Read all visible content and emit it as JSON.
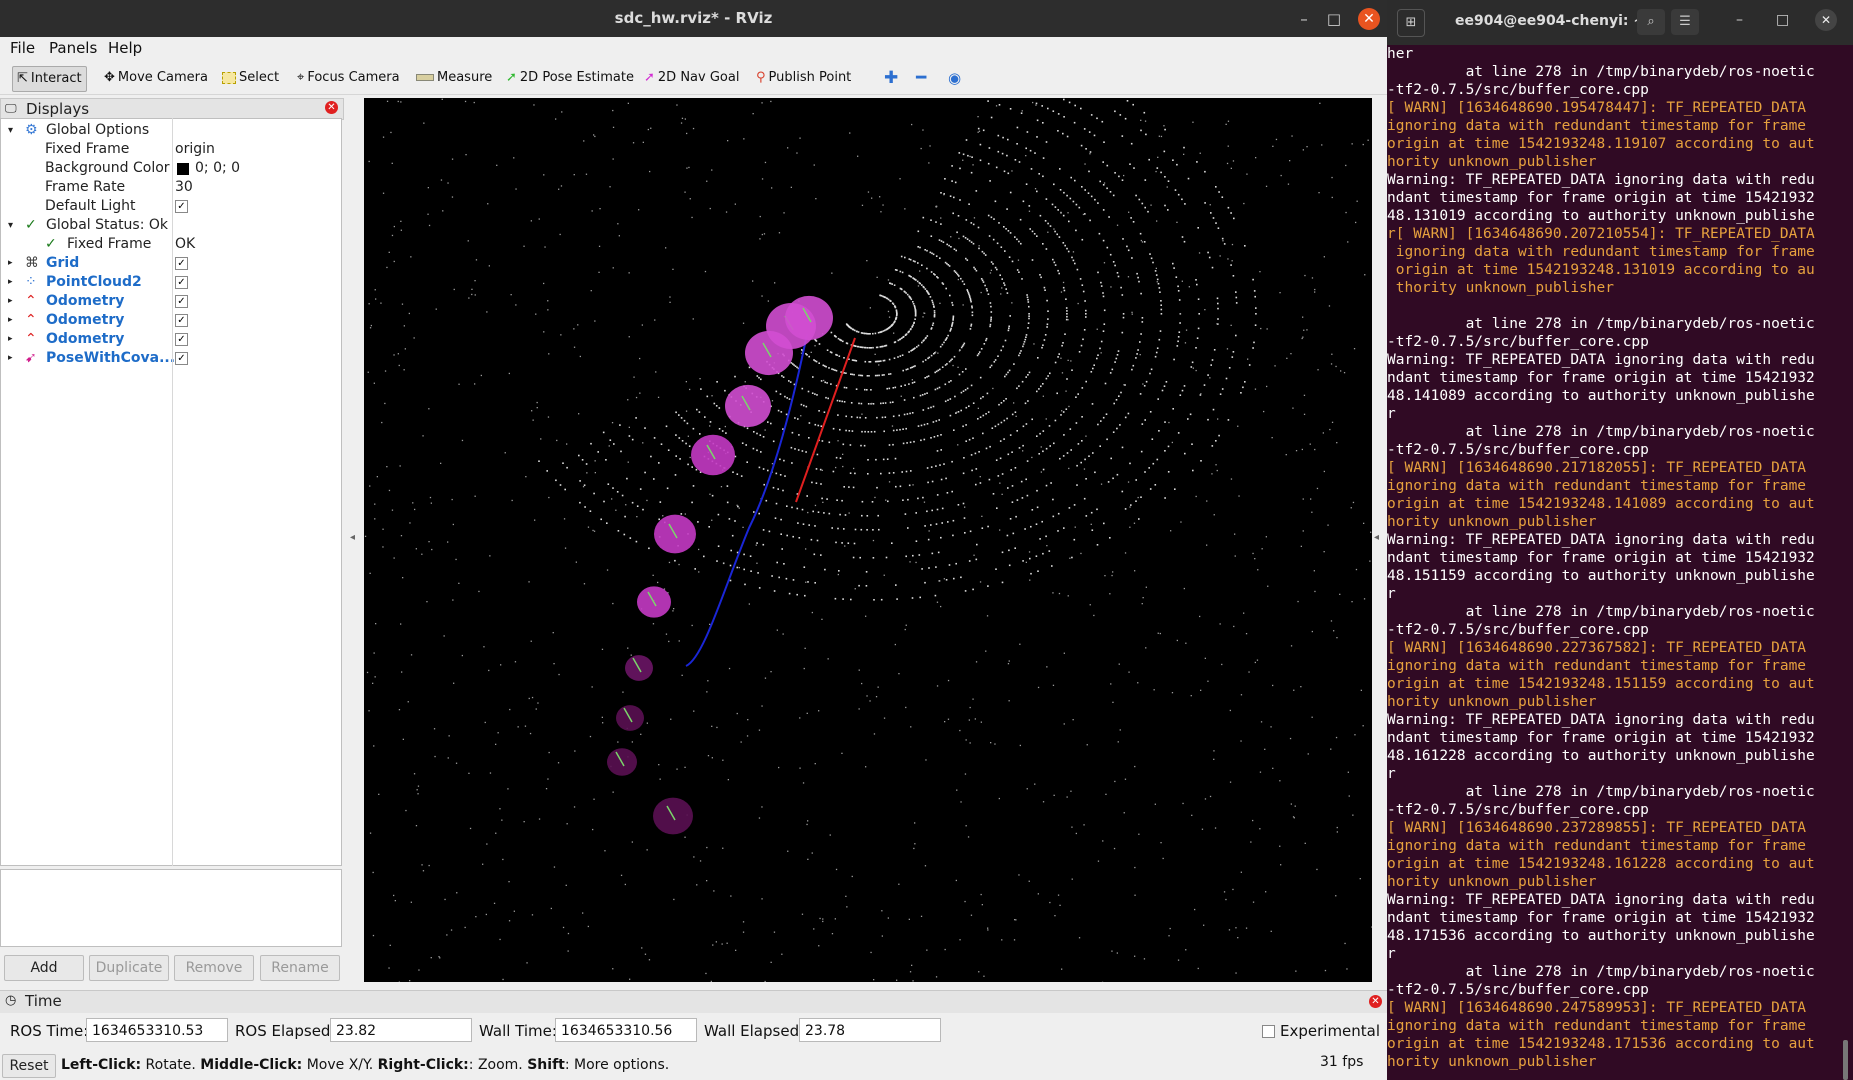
{
  "rviz": {
    "title": "sdc_hw.rviz* - RViz",
    "menus": [
      "File",
      "Panels",
      "Help"
    ],
    "toolbar": [
      {
        "label": "Interact",
        "icon": "cursor-icon"
      },
      {
        "label": "Move Camera",
        "icon": "move-camera-icon"
      },
      {
        "label": "Select",
        "icon": "select-box-icon"
      },
      {
        "label": "Focus Camera",
        "icon": "focus-camera-icon"
      },
      {
        "label": "Measure",
        "icon": "ruler-icon"
      },
      {
        "label": "2D Pose Estimate",
        "icon": "green-arrow-icon"
      },
      {
        "label": "2D Nav Goal",
        "icon": "pink-arrow-icon"
      },
      {
        "label": "Publish Point",
        "icon": "pin-icon"
      }
    ],
    "displays": {
      "title": "Displays",
      "rows": [
        {
          "label": "Global Options",
          "value": ""
        },
        {
          "label": "Fixed Frame",
          "value": "origin"
        },
        {
          "label": "Background Color",
          "value": "0; 0; 0"
        },
        {
          "label": "Frame Rate",
          "value": "30"
        },
        {
          "label": "Default Light",
          "value": ""
        },
        {
          "label": "Global Status: Ok",
          "value": ""
        },
        {
          "label": "Fixed Frame",
          "value": "OK"
        },
        {
          "label": "Grid",
          "value": ""
        },
        {
          "label": "PointCloud2",
          "value": ""
        },
        {
          "label": "Odometry",
          "value": ""
        },
        {
          "label": "Odometry",
          "value": ""
        },
        {
          "label": "Odometry",
          "value": ""
        },
        {
          "label": "PoseWithCova...",
          "value": ""
        }
      ],
      "buttons": [
        "Add",
        "Duplicate",
        "Remove",
        "Rename"
      ]
    },
    "time": {
      "title": "Time",
      "ros_time_label": "ROS Time:",
      "ros_time": "1634653310.53",
      "ros_elapsed_label": "ROS Elapsed:",
      "ros_elapsed": "23.82",
      "wall_time_label": "Wall Time:",
      "wall_time": "1634653310.56",
      "wall_elapsed_label": "Wall Elapsed:",
      "wall_elapsed": "23.78",
      "experimental_label": "Experimental",
      "reset_label": "Reset",
      "hint_left": "Left-Click:",
      "hint_left_text": " Rotate. ",
      "hint_middle": "Middle-Click:",
      "hint_middle_text": " Move X/Y. ",
      "hint_right": "Right-Click:",
      "hint_right_text": ": Zoom. ",
      "hint_shift": "Shift",
      "hint_shift_text": ": More options.",
      "fps": "31 fps"
    }
  },
  "terminal": {
    "title": "ee904@ee904-chenyi: ~",
    "lines": [
      {
        "t": "her",
        "w": false
      },
      {
        "t": "         at line 278 in /tmp/binarydeb/ros-noetic",
        "w": false
      },
      {
        "t": "-tf2-0.7.5/src/buffer_core.cpp",
        "w": false
      },
      {
        "t": "[ WARN] [1634648690.195478447]: TF_REPEATED_DATA",
        "w": true
      },
      {
        "t": "ignoring data with redundant timestamp for frame",
        "w": true
      },
      {
        "t": "origin at time 1542193248.119107 according to aut",
        "w": true
      },
      {
        "t": "hority unknown_publisher",
        "w": true
      },
      {
        "t": "Warning: TF_REPEATED_DATA ignoring data with redu",
        "w": false
      },
      {
        "t": "ndant timestamp for frame origin at time 15421932",
        "w": false
      },
      {
        "t": "48.131019 according to authority unknown_publishe",
        "w": false
      },
      {
        "t": "r[ WARN] [1634648690.207210554]: TF_REPEATED_DATA",
        "w": true
      },
      {
        "t": " ignoring data with redundant timestamp for frame",
        "w": true
      },
      {
        "t": " origin at time 1542193248.131019 according to au",
        "w": true
      },
      {
        "t": " thority unknown_publisher",
        "w": true
      },
      {
        "t": "",
        "w": false
      },
      {
        "t": "         at line 278 in /tmp/binarydeb/ros-noetic",
        "w": false
      },
      {
        "t": "-tf2-0.7.5/src/buffer_core.cpp",
        "w": false
      },
      {
        "t": "Warning: TF_REPEATED_DATA ignoring data with redu",
        "w": false
      },
      {
        "t": "ndant timestamp for frame origin at time 15421932",
        "w": false
      },
      {
        "t": "48.141089 according to authority unknown_publishe",
        "w": false
      },
      {
        "t": "r",
        "w": false
      },
      {
        "t": "         at line 278 in /tmp/binarydeb/ros-noetic",
        "w": false
      },
      {
        "t": "-tf2-0.7.5/src/buffer_core.cpp",
        "w": false
      },
      {
        "t": "[ WARN] [1634648690.217182055]: TF_REPEATED_DATA",
        "w": true
      },
      {
        "t": "ignoring data with redundant timestamp for frame",
        "w": true
      },
      {
        "t": "origin at time 1542193248.141089 according to aut",
        "w": true
      },
      {
        "t": "hority unknown_publisher",
        "w": true
      },
      {
        "t": "Warning: TF_REPEATED_DATA ignoring data with redu",
        "w": false
      },
      {
        "t": "ndant timestamp for frame origin at time 15421932",
        "w": false
      },
      {
        "t": "48.151159 according to authority unknown_publishe",
        "w": false
      },
      {
        "t": "r",
        "w": false
      },
      {
        "t": "         at line 278 in /tmp/binarydeb/ros-noetic",
        "w": false
      },
      {
        "t": "-tf2-0.7.5/src/buffer_core.cpp",
        "w": false
      },
      {
        "t": "[ WARN] [1634648690.227367582]: TF_REPEATED_DATA",
        "w": true
      },
      {
        "t": "ignoring data with redundant timestamp for frame",
        "w": true
      },
      {
        "t": "origin at time 1542193248.151159 according to aut",
        "w": true
      },
      {
        "t": "hority unknown_publisher",
        "w": true
      },
      {
        "t": "Warning: TF_REPEATED_DATA ignoring data with redu",
        "w": false
      },
      {
        "t": "ndant timestamp for frame origin at time 15421932",
        "w": false
      },
      {
        "t": "48.161228 according to authority unknown_publishe",
        "w": false
      },
      {
        "t": "r",
        "w": false
      },
      {
        "t": "         at line 278 in /tmp/binarydeb/ros-noetic",
        "w": false
      },
      {
        "t": "-tf2-0.7.5/src/buffer_core.cpp",
        "w": false
      },
      {
        "t": "[ WARN] [1634648690.237289855]: TF_REPEATED_DATA",
        "w": true
      },
      {
        "t": "ignoring data with redundant timestamp for frame",
        "w": true
      },
      {
        "t": "origin at time 1542193248.161228 according to aut",
        "w": true
      },
      {
        "t": "hority unknown_publisher",
        "w": true
      },
      {
        "t": "Warning: TF_REPEATED_DATA ignoring data with redu",
        "w": false
      },
      {
        "t": "ndant timestamp for frame origin at time 15421932",
        "w": false
      },
      {
        "t": "48.171536 according to authority unknown_publishe",
        "w": false
      },
      {
        "t": "r",
        "w": false
      },
      {
        "t": "         at line 278 in /tmp/binarydeb/ros-noetic",
        "w": false
      },
      {
        "t": "-tf2-0.7.5/src/buffer_core.cpp",
        "w": false
      },
      {
        "t": "[ WARN] [1634648690.247589953]: TF_REPEATED_DATA",
        "w": true
      },
      {
        "t": "ignoring data with redundant timestamp for frame",
        "w": true
      },
      {
        "t": "origin at time 1542193248.171536 according to aut",
        "w": true
      },
      {
        "t": "hority unknown_publisher",
        "w": true
      }
    ]
  },
  "colors": {
    "terminal_bg": "#300a24",
    "warn": "#e7a13e",
    "link_blue": "#1e6cc8",
    "close_orange": "#e95420"
  }
}
